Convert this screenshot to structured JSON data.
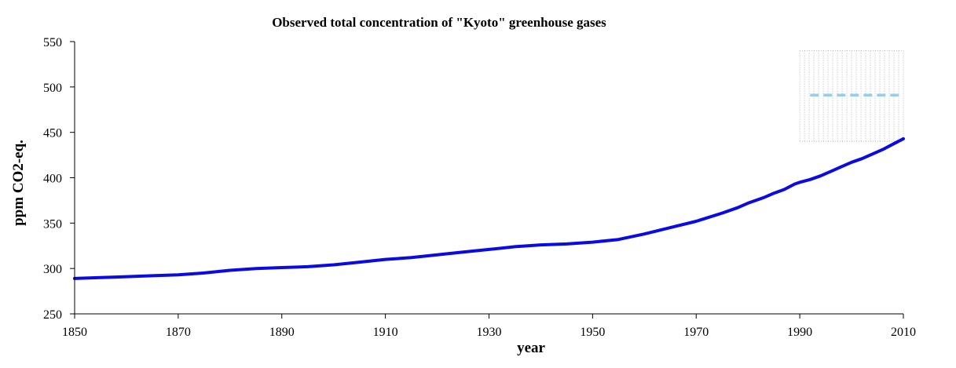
{
  "chart_data": {
    "type": "line",
    "title": "Observed total concentration of \"Kyoto\" greenhouse gases",
    "xlabel": "year",
    "ylabel": "ppm CO2-eq.",
    "xlim": [
      1850,
      2010
    ],
    "ylim": [
      250,
      550
    ],
    "x_ticks": [
      "1850",
      "1870",
      "1890",
      "1910",
      "1930",
      "1950",
      "1970",
      "1990",
      "2010"
    ],
    "y_ticks": [
      "250",
      "300",
      "350",
      "400",
      "450",
      "500",
      "550"
    ],
    "grid": false,
    "legend": "none",
    "colors": {
      "observed": "#0a0ae6",
      "reference": "#99ccee",
      "band": "#b8b8b8"
    },
    "series": [
      {
        "style": "solid",
        "x": [
          1850,
          1855,
          1860,
          1865,
          1870,
          1875,
          1880,
          1885,
          1890,
          1895,
          1900,
          1905,
          1910,
          1915,
          1920,
          1925,
          1930,
          1935,
          1940,
          1945,
          1950,
          1955,
          1960,
          1965,
          1970,
          1975,
          1978,
          1980,
          1983,
          1985,
          1987,
          1989,
          1990,
          1992,
          1994,
          1996,
          1998,
          2000,
          2002,
          2004,
          2006,
          2008,
          2010
        ],
        "values": [
          289,
          290,
          291,
          292,
          293,
          295,
          298,
          300,
          301,
          302,
          304,
          307,
          310,
          312,
          315,
          318,
          321,
          324,
          326,
          327,
          329,
          332,
          338,
          345,
          352,
          361,
          367,
          372,
          378,
          383,
          387,
          393,
          395,
          398,
          402,
          407,
          412,
          417,
          421,
          426,
          431,
          437,
          443
        ]
      },
      {
        "style": "dashed",
        "x": [
          1992,
          2010
        ],
        "values": [
          491,
          491
        ]
      }
    ],
    "band": {
      "x": [
        1990,
        2010
      ],
      "y": [
        440,
        540
      ]
    }
  }
}
